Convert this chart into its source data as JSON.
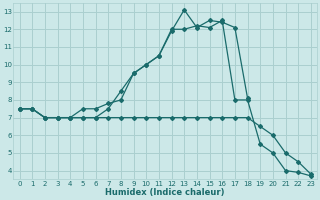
{
  "xlabel": "Humidex (Indice chaleur)",
  "bg_color": "#cce8e8",
  "grid_color": "#aacfcf",
  "line_color": "#1a6b6b",
  "xlim": [
    -0.5,
    23.5
  ],
  "ylim": [
    3.5,
    13.5
  ],
  "xticks": [
    0,
    1,
    2,
    3,
    4,
    5,
    6,
    7,
    8,
    9,
    10,
    11,
    12,
    13,
    14,
    15,
    16,
    17,
    18,
    19,
    20,
    21,
    22,
    23
  ],
  "yticks": [
    4,
    5,
    6,
    7,
    8,
    9,
    10,
    11,
    12,
    13
  ],
  "line1_x": [
    0,
    1,
    2,
    3,
    4,
    5,
    6,
    7,
    8,
    9,
    10,
    11,
    12,
    13,
    14,
    15,
    16,
    17,
    18
  ],
  "line1_y": [
    7.5,
    7.5,
    7.0,
    7.0,
    7.0,
    7.5,
    7.5,
    7.8,
    8.0,
    9.5,
    10.0,
    10.5,
    11.9,
    13.1,
    12.1,
    12.5,
    12.4,
    12.1,
    8.1
  ],
  "line2_x": [
    0,
    1,
    2,
    3,
    4,
    5,
    6,
    7,
    8,
    9,
    10,
    11,
    12,
    13,
    14,
    15,
    16,
    17,
    18,
    19,
    20,
    21,
    22,
    23
  ],
  "line2_y": [
    7.5,
    7.5,
    7.0,
    7.0,
    7.0,
    7.0,
    7.0,
    7.5,
    8.5,
    9.5,
    10.0,
    10.5,
    12.0,
    12.0,
    12.2,
    12.1,
    12.5,
    8.0,
    8.0,
    5.5,
    5.0,
    4.0,
    3.9,
    3.7
  ],
  "line3_x": [
    0,
    1,
    2,
    3,
    4,
    5,
    6,
    7,
    8,
    9,
    10,
    11,
    12,
    13,
    14,
    15,
    16,
    17,
    18,
    19,
    20,
    21,
    22,
    23
  ],
  "line3_y": [
    7.5,
    7.5,
    7.0,
    7.0,
    7.0,
    7.0,
    7.0,
    7.0,
    7.0,
    7.0,
    7.0,
    7.0,
    7.0,
    7.0,
    7.0,
    7.0,
    7.0,
    7.0,
    7.0,
    6.5,
    6.0,
    5.0,
    4.5,
    3.8
  ]
}
